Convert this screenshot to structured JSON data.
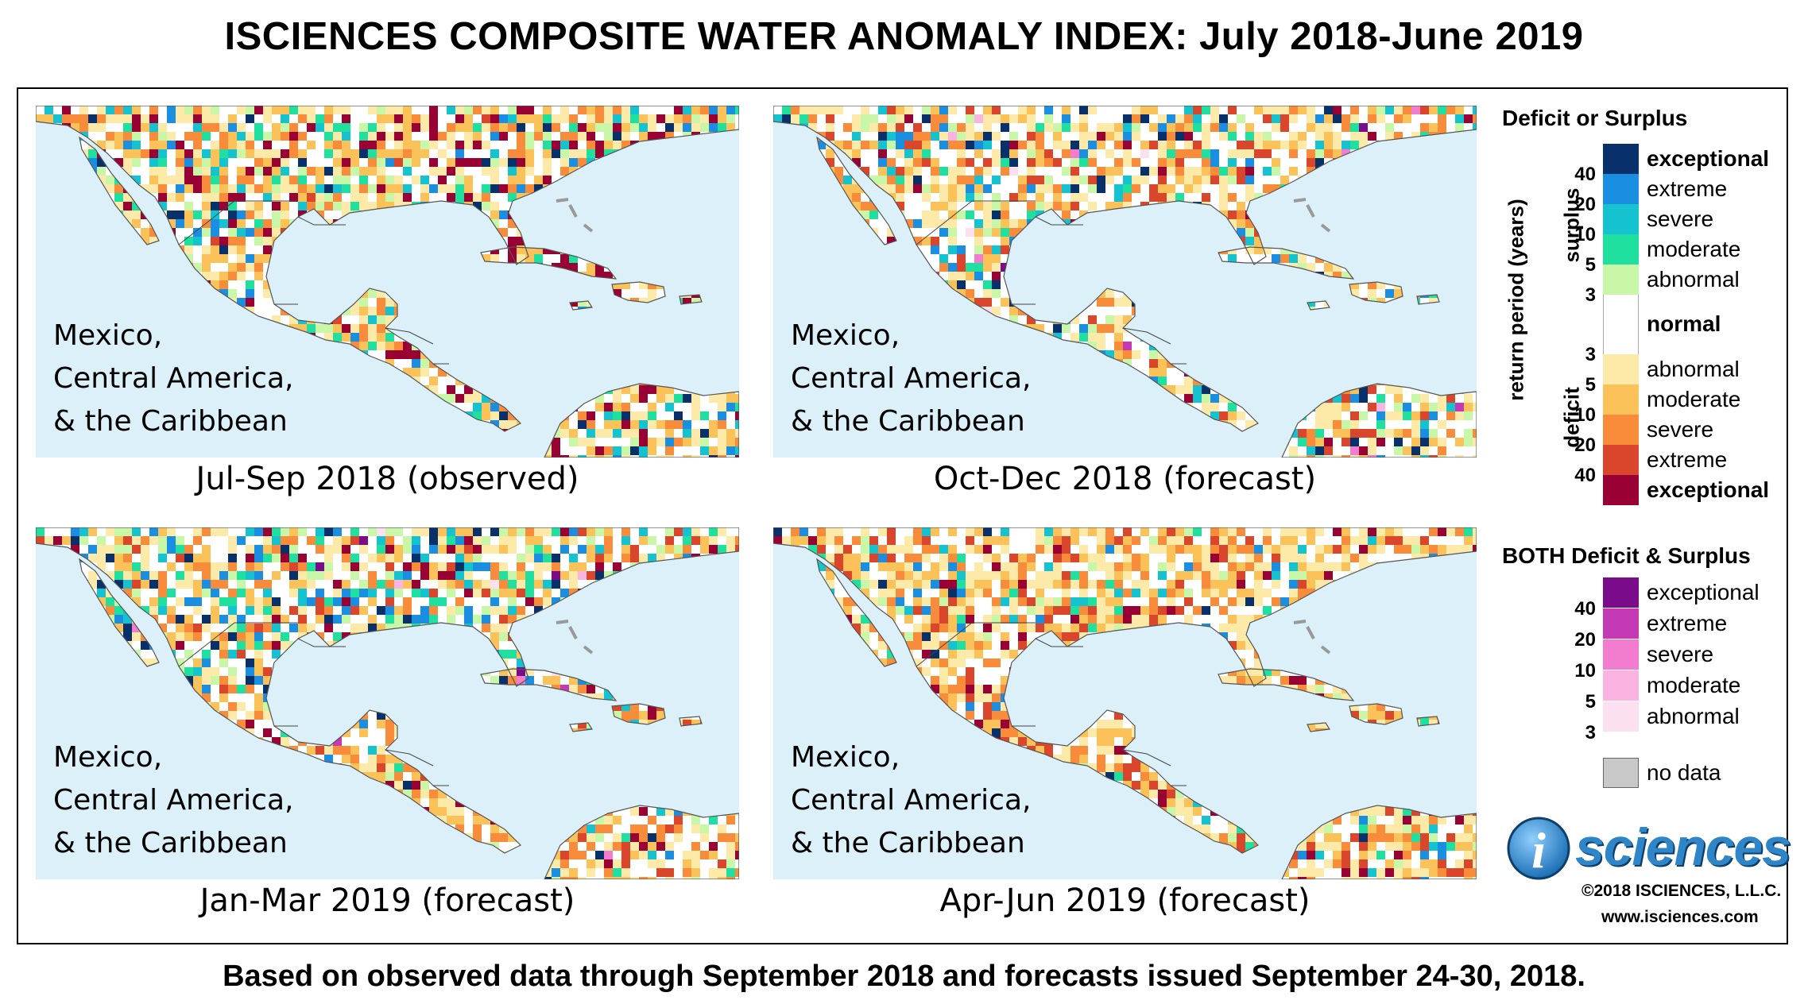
{
  "title": "ISCIENCES COMPOSITE WATER ANOMALY INDEX: July 2018-June 2019",
  "footer": "Based on observed data through September 2018 and forecasts issued September 24-30, 2018.",
  "panels": [
    {
      "region_line1": "Mexico,",
      "region_line2": "Central America,",
      "region_line3": "& the Caribbean",
      "caption": "Jul-Sep 2018 (observed)",
      "seed": 11,
      "profile": "observed"
    },
    {
      "region_line1": "Mexico,",
      "region_line2": "Central America,",
      "region_line3": "& the Caribbean",
      "caption": "Oct-Dec 2018 (forecast)",
      "seed": 23,
      "profile": "mild"
    },
    {
      "region_line1": "Mexico,",
      "region_line2": "Central America,",
      "region_line3": "& the Caribbean",
      "caption": "Jan-Mar 2019 (forecast)",
      "seed": 37,
      "profile": "wet_north"
    },
    {
      "region_line1": "Mexico,",
      "region_line2": "Central America,",
      "region_line3": "& the Caribbean",
      "caption": "Apr-Jun 2019 (forecast)",
      "seed": 53,
      "profile": "dry"
    }
  ],
  "legend": {
    "heading_primary": "Deficit or Surplus",
    "axis_label": "return period (years)",
    "surplus_label": "surplus",
    "deficit_label": "deficit",
    "surplus": [
      {
        "label": "exceptional",
        "color": "#08306b",
        "bold": true
      },
      {
        "label": "extreme",
        "color": "#1a8ee0",
        "bold": false
      },
      {
        "label": "severe",
        "color": "#14c3cf",
        "bold": false
      },
      {
        "label": "moderate",
        "color": "#20e0a0",
        "bold": false
      },
      {
        "label": "abnormal",
        "color": "#c8f7a8",
        "bold": false
      }
    ],
    "surplus_ticks": [
      "40",
      "20",
      "10",
      "5",
      "3"
    ],
    "normal": {
      "label": "normal",
      "color": "#ffffff"
    },
    "deficit": [
      {
        "label": "abnormal",
        "color": "#fde9a8",
        "bold": false
      },
      {
        "label": "moderate",
        "color": "#fbc25a",
        "bold": false
      },
      {
        "label": "severe",
        "color": "#f98c3a",
        "bold": false
      },
      {
        "label": "extreme",
        "color": "#d9462c",
        "bold": false
      },
      {
        "label": "exceptional",
        "color": "#990033",
        "bold": true
      }
    ],
    "deficit_ticks": [
      "3",
      "5",
      "10",
      "20",
      "40"
    ],
    "heading_both": "BOTH Deficit & Surplus",
    "both": [
      {
        "label": "exceptional",
        "color": "#7a0c8c"
      },
      {
        "label": "extreme",
        "color": "#c43ab4"
      },
      {
        "label": "severe",
        "color": "#f27ccd"
      },
      {
        "label": "moderate",
        "color": "#f9b4e2"
      },
      {
        "label": "abnormal",
        "color": "#fde0f0"
      }
    ],
    "both_ticks": [
      "40",
      "20",
      "10",
      "5",
      "3"
    ],
    "nodata": {
      "label": "no data",
      "color": "#c8c8c8"
    }
  },
  "logo": {
    "text": "sciences",
    "glyph": "i"
  },
  "copyright": "©2018 ISCIENCES, L.L.C.",
  "website": "www.isciences.com"
}
